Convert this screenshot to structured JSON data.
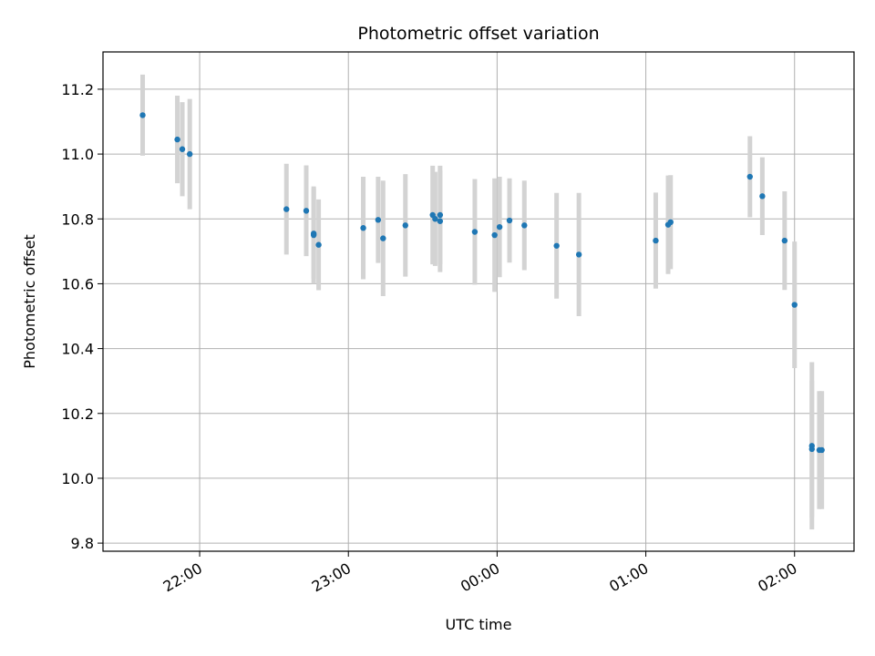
{
  "chart_data": {
    "type": "scatter",
    "title": "Photometric offset variation",
    "xlabel": "UTC time",
    "ylabel": "Photometric offset",
    "grid": true,
    "xlim": [
      "21:21",
      "02:24"
    ],
    "ylim": [
      9.775,
      11.315
    ],
    "x_ticks": [
      "22:00",
      "23:00",
      "00:00",
      "01:00",
      "02:00"
    ],
    "y_ticks": [
      "9.8",
      "10.0",
      "10.2",
      "10.4",
      "10.6",
      "10.8",
      "11.0",
      "11.2"
    ],
    "marker_color": "#1f77b4",
    "errorbar_color": "#d3d3d3",
    "points": [
      {
        "time": "21:37",
        "y": 11.12,
        "err": 0.125
      },
      {
        "time": "21:51",
        "y": 11.045,
        "err": 0.135
      },
      {
        "time": "21:53",
        "y": 11.015,
        "err": 0.145
      },
      {
        "time": "21:56",
        "y": 11.0,
        "err": 0.17
      },
      {
        "time": "22:35",
        "y": 10.83,
        "err": 0.14
      },
      {
        "time": "22:43",
        "y": 10.825,
        "err": 0.14
      },
      {
        "time": "22:46",
        "y": 10.75,
        "err": 0.15
      },
      {
        "time": "22:46",
        "y": 10.755,
        "err": 0.14
      },
      {
        "time": "22:48",
        "y": 10.72,
        "err": 0.14
      },
      {
        "time": "23:06",
        "y": 10.772,
        "err": 0.158
      },
      {
        "time": "23:12",
        "y": 10.797,
        "err": 0.133
      },
      {
        "time": "23:14",
        "y": 10.74,
        "err": 0.178
      },
      {
        "time": "23:23",
        "y": 10.78,
        "err": 0.158
      },
      {
        "time": "23:34",
        "y": 10.812,
        "err": 0.152
      },
      {
        "time": "23:35",
        "y": 10.8,
        "err": 0.145
      },
      {
        "time": "23:37",
        "y": 10.812,
        "err": 0.152
      },
      {
        "time": "23:37",
        "y": 10.793,
        "err": 0.157
      },
      {
        "time": "23:51",
        "y": 10.76,
        "err": 0.163
      },
      {
        "time": "23:59",
        "y": 10.75,
        "err": 0.175
      },
      {
        "time": "00:01",
        "y": 10.775,
        "err": 0.155
      },
      {
        "time": "00:05",
        "y": 10.795,
        "err": 0.13
      },
      {
        "time": "00:11",
        "y": 10.78,
        "err": 0.138
      },
      {
        "time": "00:24",
        "y": 10.717,
        "err": 0.163
      },
      {
        "time": "00:33",
        "y": 10.69,
        "err": 0.19
      },
      {
        "time": "01:04",
        "y": 10.733,
        "err": 0.148
      },
      {
        "time": "01:09",
        "y": 10.782,
        "err": 0.152
      },
      {
        "time": "01:10",
        "y": 10.79,
        "err": 0.145
      },
      {
        "time": "01:42",
        "y": 10.93,
        "err": 0.125
      },
      {
        "time": "01:47",
        "y": 10.87,
        "err": 0.12
      },
      {
        "time": "01:56",
        "y": 10.733,
        "err": 0.152
      },
      {
        "time": "02:00",
        "y": 10.535,
        "err": 0.195
      },
      {
        "time": "02:07",
        "y": 10.1,
        "err": 0.258
      },
      {
        "time": "02:07",
        "y": 10.09,
        "err": 0.21
      },
      {
        "time": "02:10",
        "y": 10.087,
        "err": 0.182
      },
      {
        "time": "02:11",
        "y": 10.087,
        "err": 0.182
      }
    ]
  }
}
